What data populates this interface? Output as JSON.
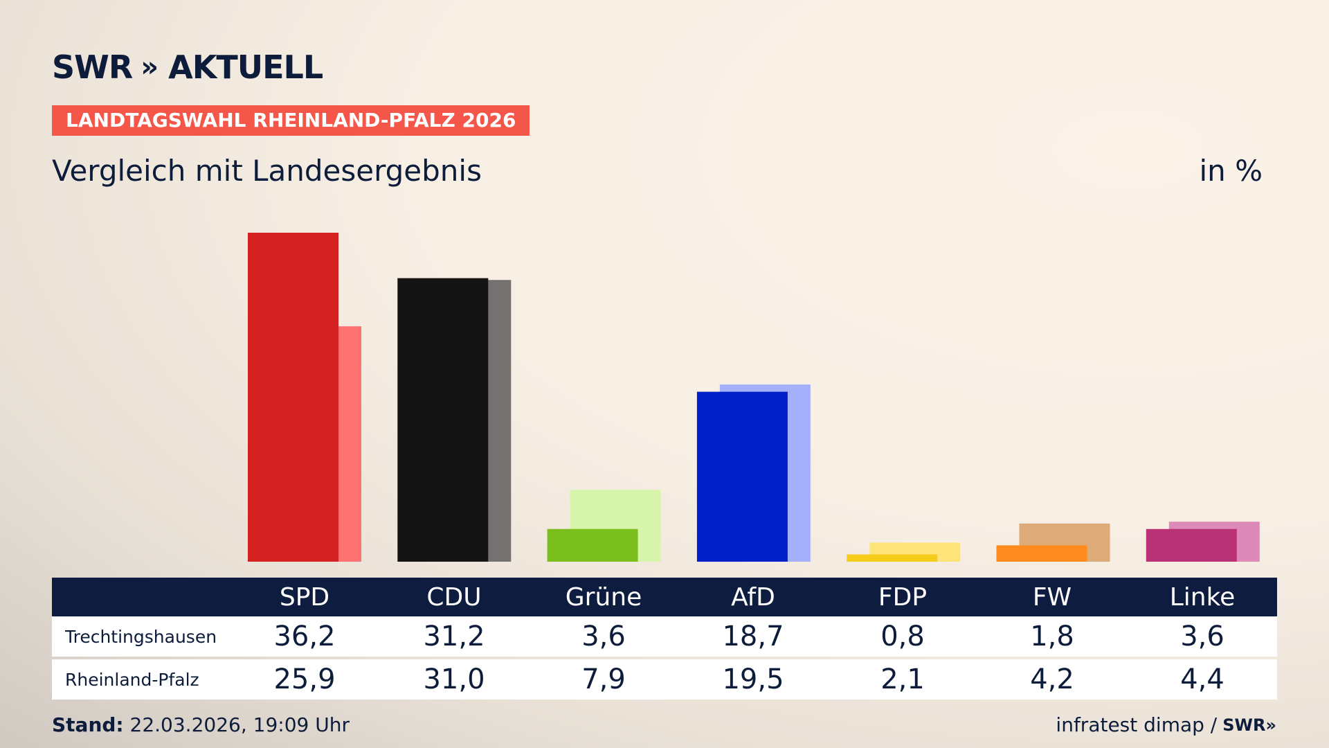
{
  "header": {
    "logo_brand": "SWR",
    "logo_chevrons": "»",
    "logo_title": "AKTUELL",
    "badge": "LANDTAGSWAHL RHEINLAND-PFALZ 2026",
    "subtitle": "Vergleich mit Landesergebnis",
    "unit": "in %"
  },
  "chart_data": {
    "type": "bar",
    "categories": [
      "SPD",
      "CDU",
      "Grüne",
      "AfD",
      "FDP",
      "FW",
      "Linke"
    ],
    "series": [
      {
        "name": "Trechtingshausen",
        "values": [
          36.2,
          31.2,
          3.6,
          18.7,
          0.8,
          1.8,
          3.6
        ]
      },
      {
        "name": "Rheinland-Pfalz",
        "values": [
          25.9,
          31.0,
          7.9,
          19.5,
          2.1,
          4.2,
          4.4
        ]
      }
    ],
    "colors_primary": [
      "#d42020",
      "#141414",
      "#7bbf1e",
      "#0020c8",
      "#f6cc1a",
      "#ff8a1e",
      "#b83275"
    ],
    "colors_secondary": [
      "#ff7272",
      "#757171",
      "#d7f4ab",
      "#a4b0fa",
      "#fde47a",
      "#dcab78",
      "#de8ab8"
    ],
    "ylim": [
      0,
      36.2
    ]
  },
  "table": {
    "headers": [
      "SPD",
      "CDU",
      "Grüne",
      "AfD",
      "FDP",
      "FW",
      "Linke"
    ],
    "rows": [
      {
        "label": "Trechtingshausen",
        "values": [
          "36,2",
          "31,2",
          "3,6",
          "18,7",
          "0,8",
          "1,8",
          "3,6"
        ]
      },
      {
        "label": "Rheinland-Pfalz",
        "values": [
          "25,9",
          "31,0",
          "7,9",
          "19,5",
          "2,1",
          "4,2",
          "4,4"
        ]
      }
    ]
  },
  "footer": {
    "stand_label": "Stand:",
    "stand_value": " 22.03.2026, 19:09 Uhr",
    "source": "infratest dimap /",
    "small_logo": "SWR»"
  }
}
